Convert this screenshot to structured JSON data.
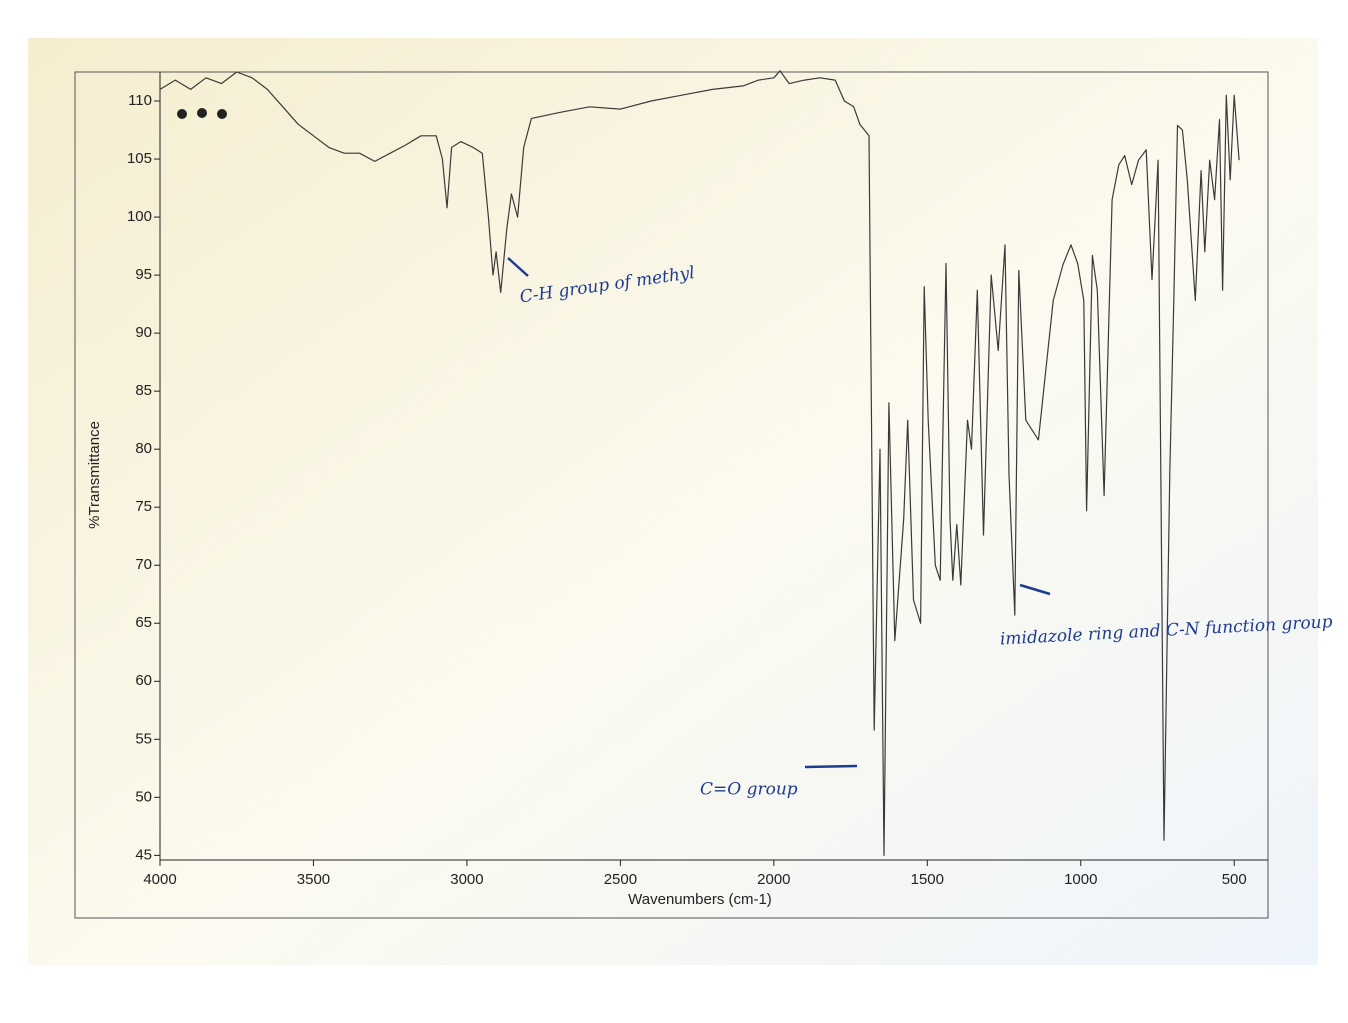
{
  "chart_data": {
    "type": "line",
    "xlabel": "Wavenumbers (cm-1)",
    "ylabel": "%Transmittance",
    "x": [
      4000,
      3950,
      3900,
      3850,
      3800,
      3750,
      3700,
      3650,
      3600,
      3550,
      3500,
      3450,
      3400,
      3350,
      3300,
      3250,
      3200,
      3150,
      3100,
      3080,
      3065,
      3050,
      3020,
      2980,
      2950,
      2930,
      2915,
      2905,
      2890,
      2870,
      2855,
      2835,
      2815,
      2790,
      2700,
      2600,
      2500,
      2400,
      2300,
      2200,
      2100,
      2050,
      2000,
      1980,
      1950,
      1900,
      1850,
      1800,
      1770,
      1740,
      1720,
      1690,
      1673,
      1654,
      1641,
      1625,
      1606,
      1577,
      1564,
      1545,
      1522,
      1510,
      1497,
      1474,
      1458,
      1439,
      1426,
      1417,
      1404,
      1391,
      1369,
      1356,
      1337,
      1317,
      1292,
      1269,
      1247,
      1234,
      1215,
      1202,
      1179,
      1138,
      1090,
      1058,
      1032,
      1010,
      990,
      981,
      962,
      946,
      924,
      898,
      876,
      857,
      834,
      812,
      787,
      768,
      748,
      729,
      710,
      697,
      685,
      669,
      653,
      627,
      608,
      596,
      580,
      564,
      548,
      538,
      526,
      513,
      500,
      484
    ],
    "values": [
      111,
      111.8,
      111,
      112,
      111.5,
      112.5,
      112,
      111,
      109.5,
      108,
      107,
      106,
      105.5,
      105.5,
      104.8,
      105.5,
      106.2,
      107,
      107,
      105,
      100.8,
      106,
      106.5,
      106,
      105.5,
      100,
      95,
      97,
      93.5,
      99,
      102,
      100,
      106,
      108.5,
      109,
      109.5,
      109.3,
      110,
      110.5,
      111,
      111.3,
      111.8,
      112,
      112.6,
      111.5,
      111.8,
      112,
      111.8,
      110,
      109.5,
      108,
      107,
      55.8,
      80,
      45,
      84,
      63.5,
      74,
      82.5,
      67,
      65,
      94,
      82.5,
      70,
      68.7,
      96,
      74,
      68.7,
      73.5,
      68.3,
      82.5,
      80,
      93.7,
      72.6,
      95,
      88.5,
      97.6,
      77.8,
      65.7,
      95.4,
      82.5,
      80.8,
      92.8,
      95.9,
      97.6,
      96,
      92.8,
      74.7,
      96.7,
      93.7,
      76,
      101.5,
      104.5,
      105.3,
      102.8,
      104.9,
      105.8,
      94.6,
      104.9,
      46.3,
      78,
      92.8,
      107.9,
      107.5,
      103.2,
      92.8,
      104,
      97,
      104.9,
      101.5,
      108.4,
      93.7,
      110.5,
      103.2,
      110.5,
      104.9
    ],
    "color": "#3a3a3a",
    "xlim": [
      4000,
      390
    ],
    "ylim": [
      44.6,
      112.5
    ],
    "xticks": [
      4000,
      3500,
      3000,
      2500,
      2000,
      1500,
      1000,
      500
    ],
    "yticks": [
      45,
      50,
      55,
      60,
      65,
      70,
      75,
      80,
      85,
      90,
      95,
      100,
      105,
      110
    ],
    "grid": false,
    "annotations": [
      "C-H group of methyl",
      "C=O group",
      "imidazole ring and C-N function group"
    ]
  }
}
